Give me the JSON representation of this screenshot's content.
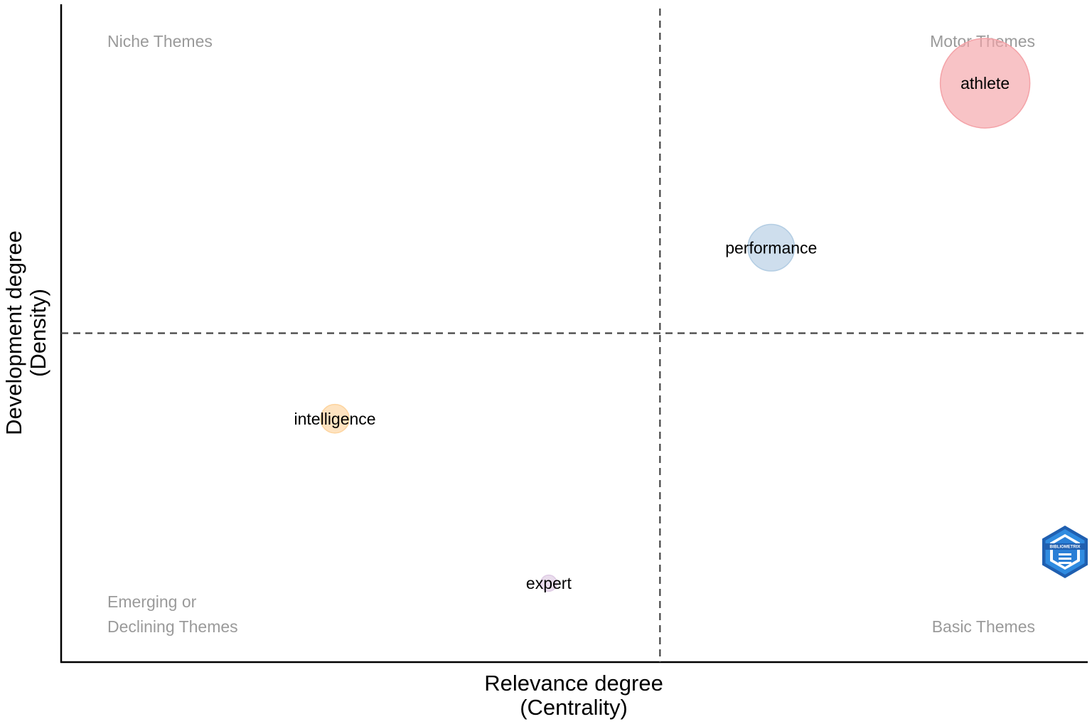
{
  "chart_data": {
    "type": "scatter",
    "title": "",
    "xlabel_lines": [
      "Relevance degree",
      "(Centrality)"
    ],
    "ylabel_lines": [
      "Development degree",
      "(Density)"
    ],
    "x_ticks_shown": false,
    "y_ticks_shown": false,
    "grid": false,
    "quadrant_labels": {
      "top_left": [
        "Niche Themes"
      ],
      "top_right": [
        "Motor Themes"
      ],
      "bottom_left": [
        "Emerging or",
        "Declining Themes"
      ],
      "bottom_right": [
        "Basic Themes"
      ]
    },
    "points": [
      {
        "label": "athlete",
        "centrality": 0.88,
        "density": 0.88,
        "relative_size": 1.0,
        "color": "#f4a3a8"
      },
      {
        "label": "performance",
        "centrality": 0.63,
        "density": 0.63,
        "relative_size": 0.52,
        "color": "#b3cde3"
      },
      {
        "label": "intelligence",
        "centrality": 0.12,
        "density": 0.37,
        "relative_size": 0.32,
        "color": "#fdd49e"
      },
      {
        "label": "expert",
        "centrality": 0.37,
        "density": 0.12,
        "relative_size": 0.18,
        "color": "#decbe4"
      }
    ],
    "mean_centrality": 0.5,
    "mean_density": 0.5,
    "logo_text": "BIBLIOMETRIX"
  }
}
